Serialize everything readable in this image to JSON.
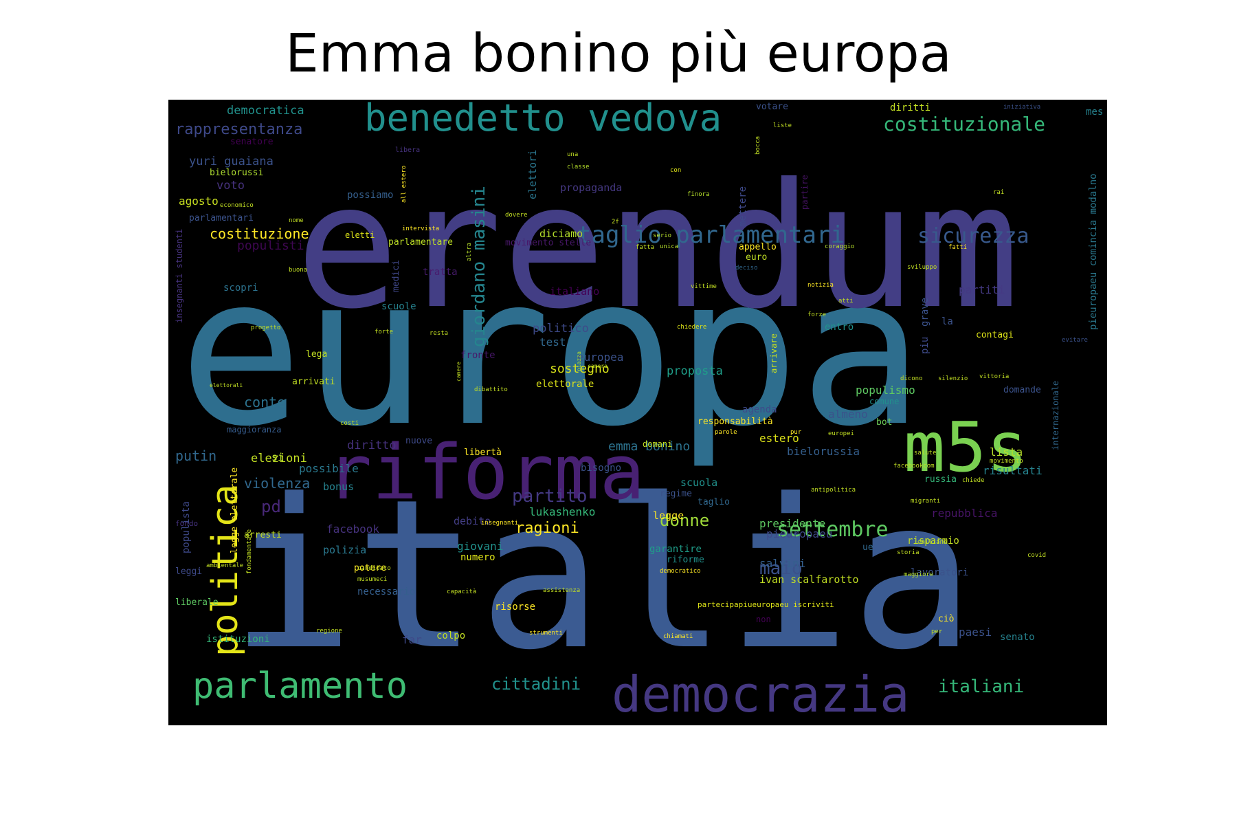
{
  "title": "Emma bonino  più europa",
  "colors": {
    "background": "#000000",
    "palette": "viridis"
  },
  "words": [
    {
      "text": "europa",
      "color": "#2e6e8e"
    },
    {
      "text": "italia",
      "color": "#3b5b92"
    },
    {
      "text": "erendum",
      "color": "#433e85"
    },
    {
      "text": "riforma",
      "color": "#482173"
    },
    {
      "text": "m5s",
      "color": "#7ad151"
    },
    {
      "text": "democrazia",
      "color": "#453882"
    },
    {
      "text": "benedetto vedova",
      "color": "#21908d"
    },
    {
      "text": "politica",
      "color": "#e3e418"
    },
    {
      "text": "parlamento",
      "color": "#3fbc73"
    },
    {
      "text": "taglio parlamentari",
      "color": "#31678e"
    },
    {
      "text": "costituzionale",
      "color": "#35b779"
    },
    {
      "text": "sicurezza",
      "color": "#38598c"
    },
    {
      "text": "giordano masini",
      "color": "#25858e"
    },
    {
      "text": "settembre",
      "color": "#5ec962"
    },
    {
      "text": "partito",
      "color": "#443983"
    },
    {
      "text": "rappresentanza",
      "color": "#3e4989"
    },
    {
      "text": "italiani",
      "color": "#35b779"
    },
    {
      "text": "cittadini",
      "color": "#21918c"
    },
    {
      "text": "costituzione",
      "color": "#fde725"
    },
    {
      "text": "donne",
      "color": "#a0da39"
    },
    {
      "text": "ragioni",
      "color": "#fde725"
    },
    {
      "text": "maio",
      "color": "#3b528b"
    },
    {
      "text": "violenza",
      "color": "#31688e"
    },
    {
      "text": "partecipapiueuropaeu erendum",
      "color": "#35b779"
    },
    {
      "text": "pd",
      "color": "#482878"
    },
    {
      "text": "emma bonino",
      "color": "#2c728e"
    },
    {
      "text": "democratica",
      "color": "#21918c"
    },
    {
      "text": "yuri guaiana",
      "color": "#3b528b"
    },
    {
      "text": "sostegno",
      "color": "#d8e219"
    },
    {
      "text": "proposta",
      "color": "#1f9e89"
    },
    {
      "text": "conte",
      "color": "#2c728e"
    },
    {
      "text": "elezioni",
      "color": "#c2df23"
    },
    {
      "text": "putin",
      "color": "#31688e"
    },
    {
      "text": "agosto",
      "color": "#c8e020"
    },
    {
      "text": "voto",
      "color": "#46327e"
    },
    {
      "text": "bielorussi",
      "color": "#addc30"
    },
    {
      "text": "senatore",
      "color": "#440154"
    },
    {
      "text": "diritti",
      "color": "#c2df23"
    },
    {
      "text": "votare",
      "color": "#3b528b"
    },
    {
      "text": "mes",
      "color": "#26828e"
    },
    {
      "text": "populisti",
      "color": "#3e0751"
    },
    {
      "text": "parlamentari",
      "color": "#3b528b"
    },
    {
      "text": "eletti",
      "color": "#dde318"
    },
    {
      "text": "parlamentare",
      "color": "#bddf26"
    },
    {
      "text": "diciamo",
      "color": "#b5de2b"
    },
    {
      "text": "movimento stelle",
      "color": "#481769"
    },
    {
      "text": "propaganda",
      "color": "#453882"
    },
    {
      "text": "possiamo",
      "color": "#355f8d"
    },
    {
      "text": "mettere",
      "color": "#3e4989"
    },
    {
      "text": "elettori",
      "color": "#2a768e"
    },
    {
      "text": "partire",
      "color": "#471365"
    },
    {
      "text": "pieuropaeu comincia modalno",
      "color": "#2a788e"
    },
    {
      "text": "appello",
      "color": "#fde725"
    },
    {
      "text": "euro",
      "color": "#c0df25"
    },
    {
      "text": "medici",
      "color": "#3f4788"
    },
    {
      "text": "tratta",
      "color": "#481b6d"
    },
    {
      "text": "scopri",
      "color": "#2c728e"
    },
    {
      "text": "scuole",
      "color": "#26828e"
    },
    {
      "text": "italiano",
      "color": "#440154"
    },
    {
      "text": "politico",
      "color": "#3e4a89"
    },
    {
      "text": "test",
      "color": "#31688e"
    },
    {
      "text": "europea",
      "color": "#3b528b"
    },
    {
      "text": "partiti",
      "color": "#443983"
    },
    {
      "text": "grave",
      "color": "#3b528b"
    },
    {
      "text": "piu",
      "color": "#3e4a89"
    },
    {
      "text": "la",
      "color": "#3b528b"
    },
    {
      "text": "entro",
      "color": "#21918c"
    },
    {
      "text": "contagi",
      "color": "#dde318"
    },
    {
      "text": "lega",
      "color": "#c2df23"
    },
    {
      "text": "fronte",
      "color": "#48186a"
    },
    {
      "text": "arrivare",
      "color": "#c8e020"
    },
    {
      "text": "arrivati",
      "color": "#c2df23"
    },
    {
      "text": "elettorale",
      "color": "#dde318"
    },
    {
      "text": "populismo",
      "color": "#5ec962"
    },
    {
      "text": "domande",
      "color": "#3b528b"
    },
    {
      "text": "internazionale",
      "color": "#31688e"
    },
    {
      "text": "comune",
      "color": "#21918c"
    },
    {
      "text": "almeno",
      "color": "#3b528b"
    },
    {
      "text": "bot",
      "color": "#6ece58"
    },
    {
      "text": "responsabilità",
      "color": "#fde725"
    },
    {
      "text": "agenda",
      "color": "#3e4a89"
    },
    {
      "text": "maggioranza",
      "color": "#365c8d"
    },
    {
      "text": "diritto",
      "color": "#46327e"
    },
    {
      "text": "nuove",
      "color": "#3e4a89"
    },
    {
      "text": "libertà",
      "color": "#fde725"
    },
    {
      "text": "domani",
      "color": "#c2df23"
    },
    {
      "text": "estero",
      "color": "#dde318"
    },
    {
      "text": "bielorussia",
      "color": "#355f8d"
    },
    {
      "text": "lista",
      "color": "#b5de2b"
    },
    {
      "text": "si",
      "color": "#b5de2b"
    },
    {
      "text": "possibile",
      "color": "#2a788e"
    },
    {
      "text": "bisogno",
      "color": "#3b528b"
    },
    {
      "text": "risultati",
      "color": "#26828e"
    },
    {
      "text": "russia",
      "color": "#35b779"
    },
    {
      "text": "bonus",
      "color": "#26828e"
    },
    {
      "text": "scuola",
      "color": "#21918c"
    },
    {
      "text": "regime",
      "color": "#3b528b"
    },
    {
      "text": "taglio",
      "color": "#31688e"
    },
    {
      "text": "repubblica",
      "color": "#481467"
    },
    {
      "text": "lukashenko",
      "color": "#35b779"
    },
    {
      "text": "legge",
      "color": "#fde725"
    },
    {
      "text": "presidente",
      "color": "#5ec962"
    },
    {
      "text": "pieuropaeu",
      "color": "#3e4a89"
    },
    {
      "text": "facebook",
      "color": "#46327e"
    },
    {
      "text": "debito",
      "color": "#433e85"
    },
    {
      "text": "giovani",
      "color": "#21918c"
    },
    {
      "text": "numero",
      "color": "#dde318"
    },
    {
      "text": "arresti",
      "color": "#c2df23"
    },
    {
      "text": "polizia",
      "color": "#2a788e"
    },
    {
      "text": "garantire",
      "color": "#1f9e89"
    },
    {
      "text": "riforme",
      "color": "#21918c"
    },
    {
      "text": "ue",
      "color": "#31688e"
    },
    {
      "text": "risparmio",
      "color": "#c2df23"
    },
    {
      "text": "salvini",
      "color": "#355f8d"
    },
    {
      "text": "potere",
      "color": "#fde725"
    },
    {
      "text": "lavoratori",
      "color": "#3b528b"
    },
    {
      "text": "populista",
      "color": "#3e4989"
    },
    {
      "text": "leggi",
      "color": "#3e4a89"
    },
    {
      "text": "ivan scalfarotto",
      "color": "#c2df23"
    },
    {
      "text": "necessario",
      "color": "#355f8d"
    },
    {
      "text": "liberale",
      "color": "#5ec962"
    },
    {
      "text": "risorse",
      "color": "#fde725"
    },
    {
      "text": "partecipapiueuropaeu iscriviti",
      "color": "#dde318"
    },
    {
      "text": "ciò",
      "color": "#fde725"
    },
    {
      "text": "paesi",
      "color": "#3b528b"
    },
    {
      "text": "senato",
      "color": "#26828e"
    },
    {
      "text": "istituzioni",
      "color": "#35b779"
    },
    {
      "text": "far",
      "color": "#3e4a89"
    },
    {
      "text": "colpo",
      "color": "#c2df23"
    },
    {
      "text": "legge elettorale",
      "color": "#fde725"
    },
    {
      "text": "fondo",
      "color": "#46327e"
    },
    {
      "text": "insegnanti studenti",
      "color": "#46327e"
    },
    {
      "text": "non",
      "color": "#440154"
    },
    {
      "text": "iniziativa",
      "color": "#3b528b"
    },
    {
      "text": "liste",
      "color": "#c2df23"
    },
    {
      "text": "libera",
      "color": "#46327e"
    },
    {
      "text": "una",
      "color": "#c2df23"
    },
    {
      "text": "classe",
      "color": "#b5de2b"
    },
    {
      "text": "con",
      "color": "#dde318"
    },
    {
      "text": "rai",
      "color": "#c2df23"
    },
    {
      "text": "finora",
      "color": "#b5de2b"
    },
    {
      "text": "dovere",
      "color": "#c2df23"
    },
    {
      "text": "2f",
      "color": "#c2df23"
    },
    {
      "text": "nome",
      "color": "#c2df23"
    },
    {
      "text": "intervista",
      "color": "#fde725"
    },
    {
      "text": "serio",
      "color": "#b5de2b"
    },
    {
      "text": "altra",
      "color": "#b5de2b"
    },
    {
      "text": "fatta",
      "color": "#c2df23"
    },
    {
      "text": "unica",
      "color": "#b5de2b"
    },
    {
      "text": "coraggio",
      "color": "#b5de2b"
    },
    {
      "text": "fatti",
      "color": "#fde725"
    },
    {
      "text": "sviluppo",
      "color": "#c2df23"
    },
    {
      "text": "deciso",
      "color": "#31688e"
    },
    {
      "text": "buona",
      "color": "#c2df23"
    },
    {
      "text": "vittime",
      "color": "#c2df23"
    },
    {
      "text": "notizia",
      "color": "#fde725"
    },
    {
      "text": "atti",
      "color": "#c2df23"
    },
    {
      "text": "forze",
      "color": "#c2df23"
    },
    {
      "text": "chiedere",
      "color": "#dde318"
    },
    {
      "text": "progetto",
      "color": "#c2df23"
    },
    {
      "text": "forte",
      "color": "#c2df23"
    },
    {
      "text": "resta",
      "color": "#c2df23"
    },
    {
      "text": "evitare",
      "color": "#3b528b"
    },
    {
      "text": "camera",
      "color": "#c2df23"
    },
    {
      "text": "camere",
      "color": "#c2df23"
    },
    {
      "text": "piazza",
      "color": "#b5de2b"
    },
    {
      "text": "dibattito",
      "color": "#c2df23"
    },
    {
      "text": "dicono",
      "color": "#c2df23"
    },
    {
      "text": "silenzio",
      "color": "#c2df23"
    },
    {
      "text": "vittoria",
      "color": "#c2df23"
    },
    {
      "text": "elettorali",
      "color": "#c2df23"
    },
    {
      "text": "costi",
      "color": "#c2df23"
    },
    {
      "text": "parole",
      "color": "#fde725"
    },
    {
      "text": "pur",
      "color": "#fde725"
    },
    {
      "text": "europei",
      "color": "#c2df23"
    },
    {
      "text": "salute",
      "color": "#c2df23"
    },
    {
      "text": "movimento",
      "color": "#c2df23"
    },
    {
      "text": "facebookcom",
      "color": "#c2df23"
    },
    {
      "text": "chiede",
      "color": "#c2df23"
    },
    {
      "text": "antipolitica",
      "color": "#c2df23"
    },
    {
      "text": "migranti",
      "color": "#c2df23"
    },
    {
      "text": "insegnanti",
      "color": "#fde725"
    },
    {
      "text": "emiliano",
      "color": "#c2df23"
    },
    {
      "text": "storia",
      "color": "#c2df23"
    },
    {
      "text": "covid",
      "color": "#c2df23"
    },
    {
      "text": "maggiore",
      "color": "#b5de2b"
    },
    {
      "text": "ambientale",
      "color": "#c2df23"
    },
    {
      "text": "candidato",
      "color": "#c2df23"
    },
    {
      "text": "musumeci",
      "color": "#c2df23"
    },
    {
      "text": "democratico",
      "color": "#fde725"
    },
    {
      "text": "fondamentale",
      "color": "#c2df23"
    },
    {
      "text": "capacità",
      "color": "#c2df23"
    },
    {
      "text": "assistenza",
      "color": "#c2df23"
    },
    {
      "text": "regione",
      "color": "#c2df23"
    },
    {
      "text": "strumenti",
      "color": "#fde725"
    },
    {
      "text": "chiamati",
      "color": "#fde725"
    },
    {
      "text": "per",
      "color": "#c2df23"
    },
    {
      "text": "all estero",
      "color": "#fde725"
    },
    {
      "text": "economico",
      "color": "#c2df23"
    },
    {
      "text": "bocca",
      "color": "#c2df23"
    }
  ]
}
